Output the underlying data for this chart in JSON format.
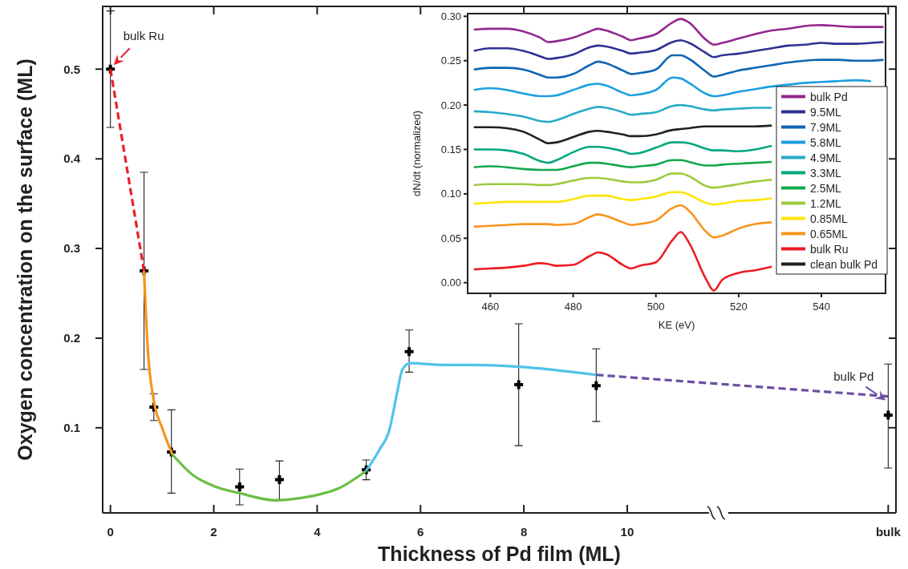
{
  "chart_data": [
    {
      "type": "scatter",
      "xlabel": "Thickness of Pd film (ML)",
      "ylabel": "Oxygen concentration on the surface (ML)",
      "xlim": [
        -0.15,
        15.2
      ],
      "xticks": [
        0,
        2,
        4,
        6,
        8,
        10,
        {
          "value": 15.05,
          "label": "bulk"
        }
      ],
      "ylim": [
        0.005,
        0.57
      ],
      "yticks": [
        0.1,
        0.2,
        0.3,
        0.4,
        0.5
      ],
      "series": [
        {
          "type": "line",
          "color": "#e8202a",
          "line_style": "dashed",
          "x": [
            0,
            0.65
          ],
          "values": [
            0.5,
            0.275
          ]
        },
        {
          "type": "line",
          "color": "#f7941d",
          "line_style": "solid",
          "x": [
            0.65,
            0.72,
            0.84,
            1.0,
            1.2
          ],
          "values": [
            0.275,
            0.19,
            0.13,
            0.1,
            0.07
          ]
        },
        {
          "type": "line",
          "color": "#6abf45",
          "line_style": "solid",
          "x": [
            1.2,
            1.6,
            2,
            2.5,
            3.2,
            3.6,
            4,
            4.4,
            4.95
          ],
          "values": [
            0.07,
            0.047,
            0.035,
            0.027,
            0.019,
            0.021,
            0.025,
            0.032,
            0.052
          ]
        },
        {
          "type": "line",
          "color": "#4fc3ea",
          "line_style": "solid",
          "x": [
            4.95,
            5.2,
            5.4,
            5.55,
            5.65,
            5.8,
            6.5,
            7,
            7.9,
            9.4
          ],
          "values": [
            0.052,
            0.075,
            0.098,
            0.14,
            0.165,
            0.172,
            0.17,
            0.17,
            0.168,
            0.159
          ]
        },
        {
          "type": "line",
          "color": "#6a4fa3",
          "line_style": "dashed",
          "x": [
            9.4,
            15.05
          ],
          "values": [
            0.159,
            0.135
          ]
        },
        {
          "type": "scatter",
          "color": "#000000",
          "marker": "cross",
          "x": [
            0,
            0.65,
            0.84,
            1.18,
            2.5,
            3.27,
            4.95,
            5.78,
            7.9,
            9.4,
            15.05
          ],
          "values": [
            0.5,
            0.275,
            0.123,
            0.073,
            0.034,
            0.042,
            0.053,
            0.185,
            0.148,
            0.147,
            0.114
          ],
          "errors": [
            [
              0.435,
              0.565
            ],
            [
              0.165,
              0.385
            ],
            [
              0.108,
              0.138
            ],
            [
              0.027,
              0.12
            ],
            [
              0.014,
              0.054
            ],
            [
              0.02,
              0.063
            ],
            [
              0.042,
              0.064
            ],
            [
              0.162,
              0.209
            ],
            [
              0.08,
              0.216
            ],
            [
              0.107,
              0.188
            ],
            [
              0.055,
              0.171
            ]
          ]
        }
      ],
      "annotations": [
        {
          "text": "bulk Ru",
          "x": 0,
          "y": 0.5
        },
        {
          "text": "bulk Pd",
          "x": 15.05,
          "y": 0.135
        }
      ]
    },
    {
      "type": "line",
      "xlabel": "KE (eV)",
      "ylabel": "dN/dt (normalized)",
      "legend": "bottom right",
      "xlim": [
        454.5,
        555.5
      ],
      "xticks": [
        460,
        480,
        500,
        520,
        540
      ],
      "ylim": [
        -0.012,
        0.303
      ],
      "yticks": [
        {
          "value": 0,
          "label": "0.00"
        },
        0.05,
        {
          "value": 0.1,
          "label": "0.10"
        },
        0.15,
        {
          "value": 0.2,
          "label": "0.20"
        },
        0.25,
        {
          "value": 0.3,
          "label": "0.30"
        }
      ],
      "x": [
        456,
        460,
        464,
        468,
        472,
        474,
        476,
        480,
        484,
        486,
        488,
        492,
        494,
        496,
        500,
        504,
        506,
        508,
        512,
        514,
        516,
        520,
        524,
        528,
        532,
        536,
        540,
        544,
        548,
        552,
        555
      ],
      "series": [
        {
          "name": "bulk Pd",
          "color": "#93278f",
          "values": [
            0.285,
            0.286,
            0.286,
            0.283,
            0.276,
            0.271,
            0.272,
            0.276,
            0.283,
            0.286,
            0.284,
            0.277,
            0.273,
            0.275,
            0.28,
            0.293,
            0.297,
            0.293,
            0.274,
            0.268,
            0.27,
            0.275,
            0.28,
            0.284,
            0.286,
            0.289,
            0.29,
            0.289,
            0.288,
            0.288,
            0.288
          ]
        },
        {
          "name": "9.5ML",
          "color": "#2e3192",
          "values": [
            0.261,
            0.264,
            0.264,
            0.261,
            0.255,
            0.252,
            0.253,
            0.257,
            0.265,
            0.267,
            0.266,
            0.261,
            0.258,
            0.259,
            0.262,
            0.271,
            0.273,
            0.27,
            0.259,
            0.254,
            0.256,
            0.258,
            0.261,
            0.264,
            0.267,
            0.268,
            0.27,
            0.269,
            0.269,
            0.27,
            0.271
          ]
        },
        {
          "name": "7.9ML",
          "color": "#0f66b2",
          "values": [
            0.24,
            0.242,
            0.242,
            0.24,
            0.234,
            0.231,
            0.231,
            0.235,
            0.245,
            0.249,
            0.247,
            0.239,
            0.235,
            0.236,
            0.24,
            0.256,
            0.256,
            0.252,
            0.238,
            0.232,
            0.234,
            0.239,
            0.242,
            0.245,
            0.248,
            0.25,
            0.251,
            0.251,
            0.25,
            0.25,
            0.251
          ]
        },
        {
          "name": "5.8ML",
          "color": "#1c9fe0",
          "values": [
            0.217,
            0.219,
            0.217,
            0.213,
            0.21,
            0.21,
            0.211,
            0.217,
            0.223,
            0.224,
            0.222,
            0.214,
            0.211,
            0.212,
            0.217,
            0.231,
            0.23,
            0.225,
            0.213,
            0.21,
            0.211,
            0.215,
            0.218,
            0.221,
            0.223,
            0.225,
            0.226,
            0.227,
            0.228,
            0.227,
            null
          ]
        },
        {
          "name": "4.9ML",
          "color": "#27aac8",
          "values": [
            0.193,
            0.192,
            0.19,
            0.187,
            0.182,
            0.181,
            0.183,
            0.19,
            0.196,
            0.198,
            0.197,
            0.192,
            0.189,
            0.19,
            0.192,
            0.199,
            0.2,
            0.199,
            0.195,
            0.194,
            0.195,
            0.196,
            0.197,
            0.197,
            null,
            null,
            null,
            null,
            null,
            null,
            null
          ]
        },
        {
          "name": "3.3ML",
          "color": "#00a87e",
          "values": [
            0.15,
            0.15,
            0.149,
            0.145,
            0.137,
            0.135,
            0.138,
            0.147,
            0.153,
            0.153,
            0.152,
            0.148,
            0.145,
            0.146,
            0.152,
            0.158,
            0.158,
            0.157,
            0.151,
            0.149,
            0.149,
            0.148,
            0.15,
            0.154,
            null,
            null,
            null,
            null,
            null,
            null,
            null
          ]
        },
        {
          "name": "2.5ML",
          "color": "#13a84a",
          "values": [
            0.13,
            0.131,
            0.13,
            0.128,
            0.127,
            0.127,
            0.127,
            0.131,
            0.135,
            0.135,
            0.134,
            0.131,
            0.13,
            0.131,
            0.133,
            0.138,
            0.138,
            0.136,
            0.132,
            0.132,
            0.133,
            0.134,
            0.135,
            0.136,
            null,
            null,
            null,
            null,
            null,
            null,
            null
          ]
        },
        {
          "name": "1.2ML",
          "color": "#9ccb3b",
          "values": [
            0.11,
            0.111,
            0.111,
            0.111,
            0.11,
            0.11,
            0.111,
            0.115,
            0.118,
            0.118,
            0.117,
            0.114,
            0.113,
            0.113,
            0.116,
            0.123,
            0.123,
            0.12,
            0.109,
            0.107,
            0.108,
            0.111,
            0.114,
            0.116,
            null,
            null,
            null,
            null,
            null,
            null,
            null
          ]
        },
        {
          "name": "0.85ML",
          "color": "#ffe500",
          "values": [
            0.089,
            0.09,
            0.091,
            0.091,
            0.091,
            0.091,
            0.091,
            0.094,
            0.098,
            0.098,
            0.098,
            0.094,
            0.093,
            0.094,
            0.097,
            0.102,
            0.102,
            0.099,
            0.09,
            0.088,
            0.089,
            0.092,
            0.093,
            0.095,
            null,
            null,
            null,
            null,
            null,
            null,
            null
          ]
        },
        {
          "name": "0.65ML",
          "color": "#f7941d",
          "values": [
            0.063,
            0.064,
            0.065,
            0.066,
            0.066,
            0.066,
            0.065,
            0.066,
            0.074,
            0.077,
            0.075,
            0.068,
            0.065,
            0.066,
            0.07,
            0.084,
            0.087,
            0.081,
            0.058,
            0.051,
            0.053,
            0.061,
            0.066,
            0.068,
            null,
            null,
            null,
            null,
            null,
            null,
            null
          ]
        },
        {
          "name": "bulk Ru",
          "color": "#ed1c24",
          "values": [
            0.015,
            0.016,
            0.017,
            0.019,
            0.022,
            0.021,
            0.019,
            0.02,
            0.03,
            0.034,
            0.032,
            0.02,
            0.016,
            0.019,
            0.023,
            0.048,
            0.057,
            0.045,
            0.005,
            -0.009,
            0.003,
            0.011,
            0.014,
            0.018,
            null,
            null,
            null,
            null,
            null,
            null,
            null
          ]
        },
        {
          "name": "clean bulk Pd",
          "color": "#231f20",
          "values": [
            0.175,
            0.175,
            0.174,
            0.17,
            0.161,
            0.157,
            0.158,
            0.164,
            0.17,
            0.171,
            0.17,
            0.167,
            0.165,
            0.165,
            0.167,
            0.172,
            0.173,
            0.174,
            0.176,
            0.176,
            0.176,
            0.176,
            0.176,
            0.177,
            null,
            null,
            null,
            null,
            null,
            null,
            null
          ]
        }
      ]
    }
  ]
}
